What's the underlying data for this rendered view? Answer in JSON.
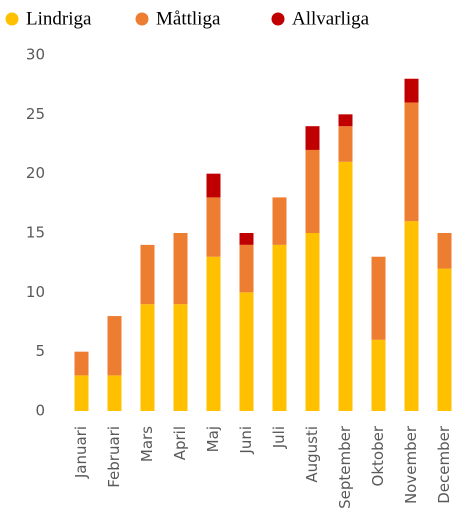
{
  "chart_data": {
    "type": "stacked_bar",
    "categories": [
      "Januari",
      "Februari",
      "Mars",
      "April",
      "Maj",
      "Juni",
      "Juli",
      "Augusti",
      "September",
      "Oktober",
      "November",
      "December"
    ],
    "series": [
      {
        "name": "Lindriga",
        "color": "#FFC000",
        "values": [
          3,
          3,
          9,
          9,
          13,
          10,
          14,
          15,
          21,
          6,
          16,
          12
        ]
      },
      {
        "name": "Måttliga",
        "color": "#ED7D31",
        "values": [
          2,
          5,
          5,
          6,
          5,
          4,
          4,
          7,
          3,
          7,
          10,
          3
        ]
      },
      {
        "name": "Allvarliga",
        "color": "#C00000",
        "values": [
          0,
          0,
          0,
          0,
          2,
          1,
          0,
          2,
          1,
          0,
          2,
          0
        ]
      }
    ],
    "ylim": [
      0,
      30
    ],
    "yticks": [
      0,
      5,
      10,
      15,
      20,
      25,
      30
    ],
    "legend": "top"
  }
}
